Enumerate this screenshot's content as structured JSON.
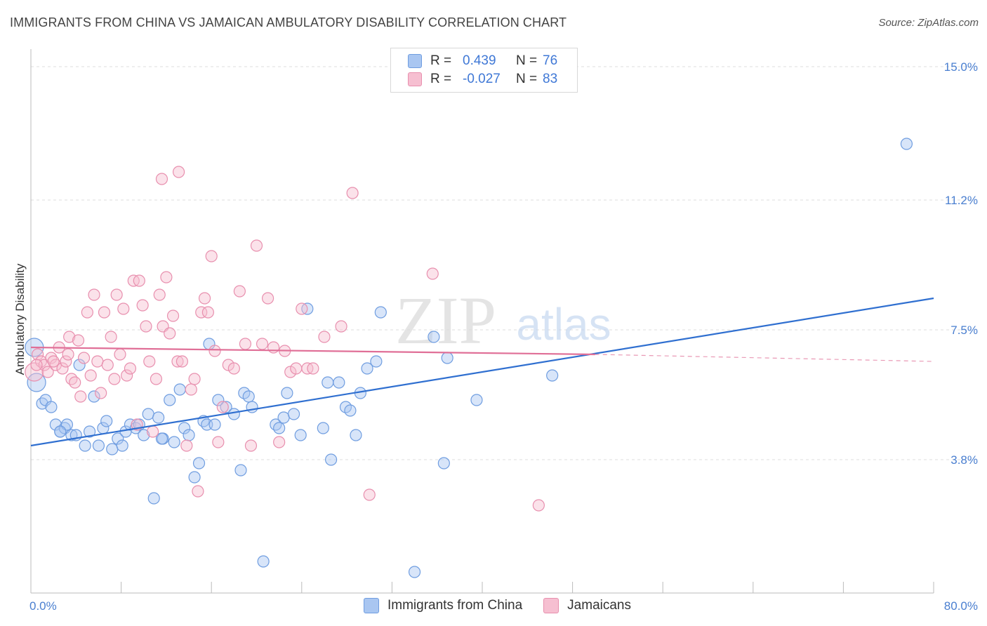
{
  "header": {
    "title": "IMMIGRANTS FROM CHINA VS JAMAICAN AMBULATORY DISABILITY CORRELATION CHART",
    "source": "Source: ZipAtlas.com"
  },
  "watermark": {
    "zip": "ZIP",
    "atlas": "atlas"
  },
  "legend": {
    "rows": [
      {
        "r_label": "R =",
        "r_value": "0.439",
        "n_label": "N =",
        "n_value": "76",
        "color": "#a9c6f1",
        "border": "#6f9de0"
      },
      {
        "r_label": "R =",
        "r_value": "-0.027",
        "n_label": "N =",
        "n_value": "83",
        "color": "#f6bfd1",
        "border": "#e88fae"
      }
    ]
  },
  "bottom_legend": {
    "items": [
      {
        "label": "Immigrants from China",
        "color": "#a9c6f1",
        "border": "#6f9de0"
      },
      {
        "label": "Jamaicans",
        "color": "#f6bfd1",
        "border": "#e88fae"
      }
    ]
  },
  "chart_data": {
    "type": "scatter",
    "title": "IMMIGRANTS FROM CHINA VS JAMAICAN AMBULATORY DISABILITY CORRELATION CHART",
    "xlabel": "",
    "ylabel": "Ambulatory Disability",
    "xlim": [
      0,
      80
    ],
    "ylim": [
      0,
      15.5
    ],
    "x_tick_labels": [
      "0.0%",
      "80.0%"
    ],
    "y_ticks": [
      3.8,
      7.5,
      11.2,
      15.0
    ],
    "y_tick_labels": [
      "3.8%",
      "7.5%",
      "11.2%",
      "15.0%"
    ],
    "grid": true,
    "legend_position": "top-center",
    "series": [
      {
        "name": "Immigrants from China",
        "color": "#6f9de0",
        "fill": "#a9c6f1",
        "line_color": "#2f6fd0",
        "trend": {
          "x0": 0,
          "y0": 4.2,
          "x1": 80,
          "y1": 8.4,
          "dashed_from": null
        },
        "points": [
          [
            0.3,
            7.0
          ],
          [
            0.5,
            6.0
          ],
          [
            1.0,
            5.4
          ],
          [
            1.3,
            5.5
          ],
          [
            1.8,
            5.3
          ],
          [
            2.2,
            4.8
          ],
          [
            2.6,
            4.6
          ],
          [
            3.0,
            4.7
          ],
          [
            3.2,
            4.8
          ],
          [
            3.6,
            4.5
          ],
          [
            4.0,
            4.5
          ],
          [
            4.3,
            6.5
          ],
          [
            4.8,
            4.2
          ],
          [
            5.2,
            4.6
          ],
          [
            5.6,
            5.6
          ],
          [
            6.0,
            4.2
          ],
          [
            6.4,
            4.7
          ],
          [
            6.7,
            4.9
          ],
          [
            7.2,
            4.1
          ],
          [
            7.7,
            4.4
          ],
          [
            8.1,
            4.2
          ],
          [
            8.4,
            4.6
          ],
          [
            8.8,
            4.8
          ],
          [
            9.3,
            4.7
          ],
          [
            9.6,
            4.8
          ],
          [
            10.0,
            4.5
          ],
          [
            10.4,
            5.1
          ],
          [
            10.9,
            2.7
          ],
          [
            11.3,
            5.0
          ],
          [
            11.7,
            4.4
          ],
          [
            12.3,
            5.5
          ],
          [
            12.7,
            4.3
          ],
          [
            13.2,
            5.8
          ],
          [
            13.6,
            4.7
          ],
          [
            14.0,
            4.5
          ],
          [
            14.5,
            3.3
          ],
          [
            14.9,
            3.7
          ],
          [
            15.3,
            4.9
          ],
          [
            15.6,
            4.8
          ],
          [
            15.8,
            7.1
          ],
          [
            16.3,
            4.8
          ],
          [
            16.6,
            5.5
          ],
          [
            17.3,
            5.3
          ],
          [
            18.0,
            5.1
          ],
          [
            18.6,
            3.5
          ],
          [
            18.9,
            5.7
          ],
          [
            19.3,
            5.6
          ],
          [
            19.6,
            5.3
          ],
          [
            20.6,
            0.9
          ],
          [
            21.7,
            4.8
          ],
          [
            22.0,
            4.7
          ],
          [
            22.4,
            5.0
          ],
          [
            22.7,
            5.7
          ],
          [
            23.3,
            5.1
          ],
          [
            23.9,
            4.5
          ],
          [
            24.5,
            8.1
          ],
          [
            25.9,
            4.7
          ],
          [
            26.3,
            6.0
          ],
          [
            26.6,
            3.8
          ],
          [
            27.3,
            6.0
          ],
          [
            27.9,
            5.3
          ],
          [
            28.3,
            5.2
          ],
          [
            28.8,
            4.5
          ],
          [
            29.2,
            5.7
          ],
          [
            29.8,
            6.4
          ],
          [
            30.6,
            6.6
          ],
          [
            31.0,
            8.0
          ],
          [
            34.0,
            0.6
          ],
          [
            35.7,
            7.3
          ],
          [
            36.6,
            3.7
          ],
          [
            36.9,
            6.7
          ],
          [
            39.5,
            5.5
          ],
          [
            46.2,
            6.2
          ],
          [
            77.6,
            12.8
          ],
          [
            2.6,
            4.6
          ],
          [
            11.6,
            4.4
          ]
        ]
      },
      {
        "name": "Jamaicans",
        "color": "#e88fae",
        "fill": "#f6bfd1",
        "line_color": "#e06f97",
        "trend": {
          "x0": 0,
          "y0": 7.0,
          "x1": 50,
          "y1": 6.8,
          "dashed_from": 50,
          "x_end": 80,
          "y_end": 6.6
        },
        "points": [
          [
            0.3,
            6.3
          ],
          [
            0.6,
            6.8
          ],
          [
            0.9,
            6.6
          ],
          [
            1.2,
            6.5
          ],
          [
            1.5,
            6.3
          ],
          [
            1.8,
            6.7
          ],
          [
            2.2,
            6.5
          ],
          [
            2.5,
            7.0
          ],
          [
            2.8,
            6.4
          ],
          [
            3.1,
            6.6
          ],
          [
            3.4,
            7.3
          ],
          [
            3.6,
            6.1
          ],
          [
            3.9,
            6.0
          ],
          [
            4.2,
            7.2
          ],
          [
            4.4,
            5.6
          ],
          [
            4.7,
            6.7
          ],
          [
            5.0,
            8.0
          ],
          [
            5.3,
            6.2
          ],
          [
            5.6,
            8.5
          ],
          [
            5.9,
            6.6
          ],
          [
            6.2,
            5.7
          ],
          [
            6.5,
            8.0
          ],
          [
            6.8,
            6.5
          ],
          [
            7.1,
            7.3
          ],
          [
            7.4,
            6.1
          ],
          [
            7.6,
            8.5
          ],
          [
            7.9,
            6.8
          ],
          [
            8.2,
            8.1
          ],
          [
            8.5,
            6.2
          ],
          [
            8.8,
            6.4
          ],
          [
            9.1,
            8.9
          ],
          [
            9.4,
            4.8
          ],
          [
            9.6,
            8.9
          ],
          [
            9.9,
            8.2
          ],
          [
            10.2,
            7.6
          ],
          [
            10.5,
            6.6
          ],
          [
            10.8,
            4.6
          ],
          [
            11.1,
            6.1
          ],
          [
            11.4,
            8.5
          ],
          [
            11.7,
            7.6
          ],
          [
            12.0,
            9.0
          ],
          [
            12.3,
            7.4
          ],
          [
            12.6,
            7.9
          ],
          [
            13.0,
            6.6
          ],
          [
            13.4,
            6.6
          ],
          [
            13.8,
            4.2
          ],
          [
            14.2,
            5.8
          ],
          [
            14.5,
            6.1
          ],
          [
            14.8,
            2.9
          ],
          [
            15.1,
            8.0
          ],
          [
            15.4,
            8.4
          ],
          [
            15.7,
            8.0
          ],
          [
            16.0,
            9.6
          ],
          [
            16.3,
            6.9
          ],
          [
            16.6,
            4.3
          ],
          [
            17.0,
            5.3
          ],
          [
            17.5,
            6.5
          ],
          [
            18.0,
            6.4
          ],
          [
            18.5,
            8.6
          ],
          [
            19.0,
            7.1
          ],
          [
            19.5,
            4.2
          ],
          [
            20.0,
            9.9
          ],
          [
            20.5,
            7.1
          ],
          [
            21.0,
            8.4
          ],
          [
            21.5,
            7.0
          ],
          [
            22.0,
            4.3
          ],
          [
            22.5,
            6.9
          ],
          [
            23.0,
            6.3
          ],
          [
            23.5,
            6.4
          ],
          [
            24.0,
            8.1
          ],
          [
            24.5,
            6.4
          ],
          [
            25.0,
            6.4
          ],
          [
            26.0,
            7.3
          ],
          [
            27.5,
            7.6
          ],
          [
            28.5,
            11.4
          ],
          [
            30.0,
            2.8
          ],
          [
            35.6,
            9.1
          ],
          [
            45.0,
            2.5
          ],
          [
            11.6,
            11.8
          ],
          [
            13.1,
            12.0
          ],
          [
            0.5,
            6.5
          ],
          [
            2.0,
            6.6
          ],
          [
            3.3,
            6.8
          ]
        ]
      }
    ]
  }
}
